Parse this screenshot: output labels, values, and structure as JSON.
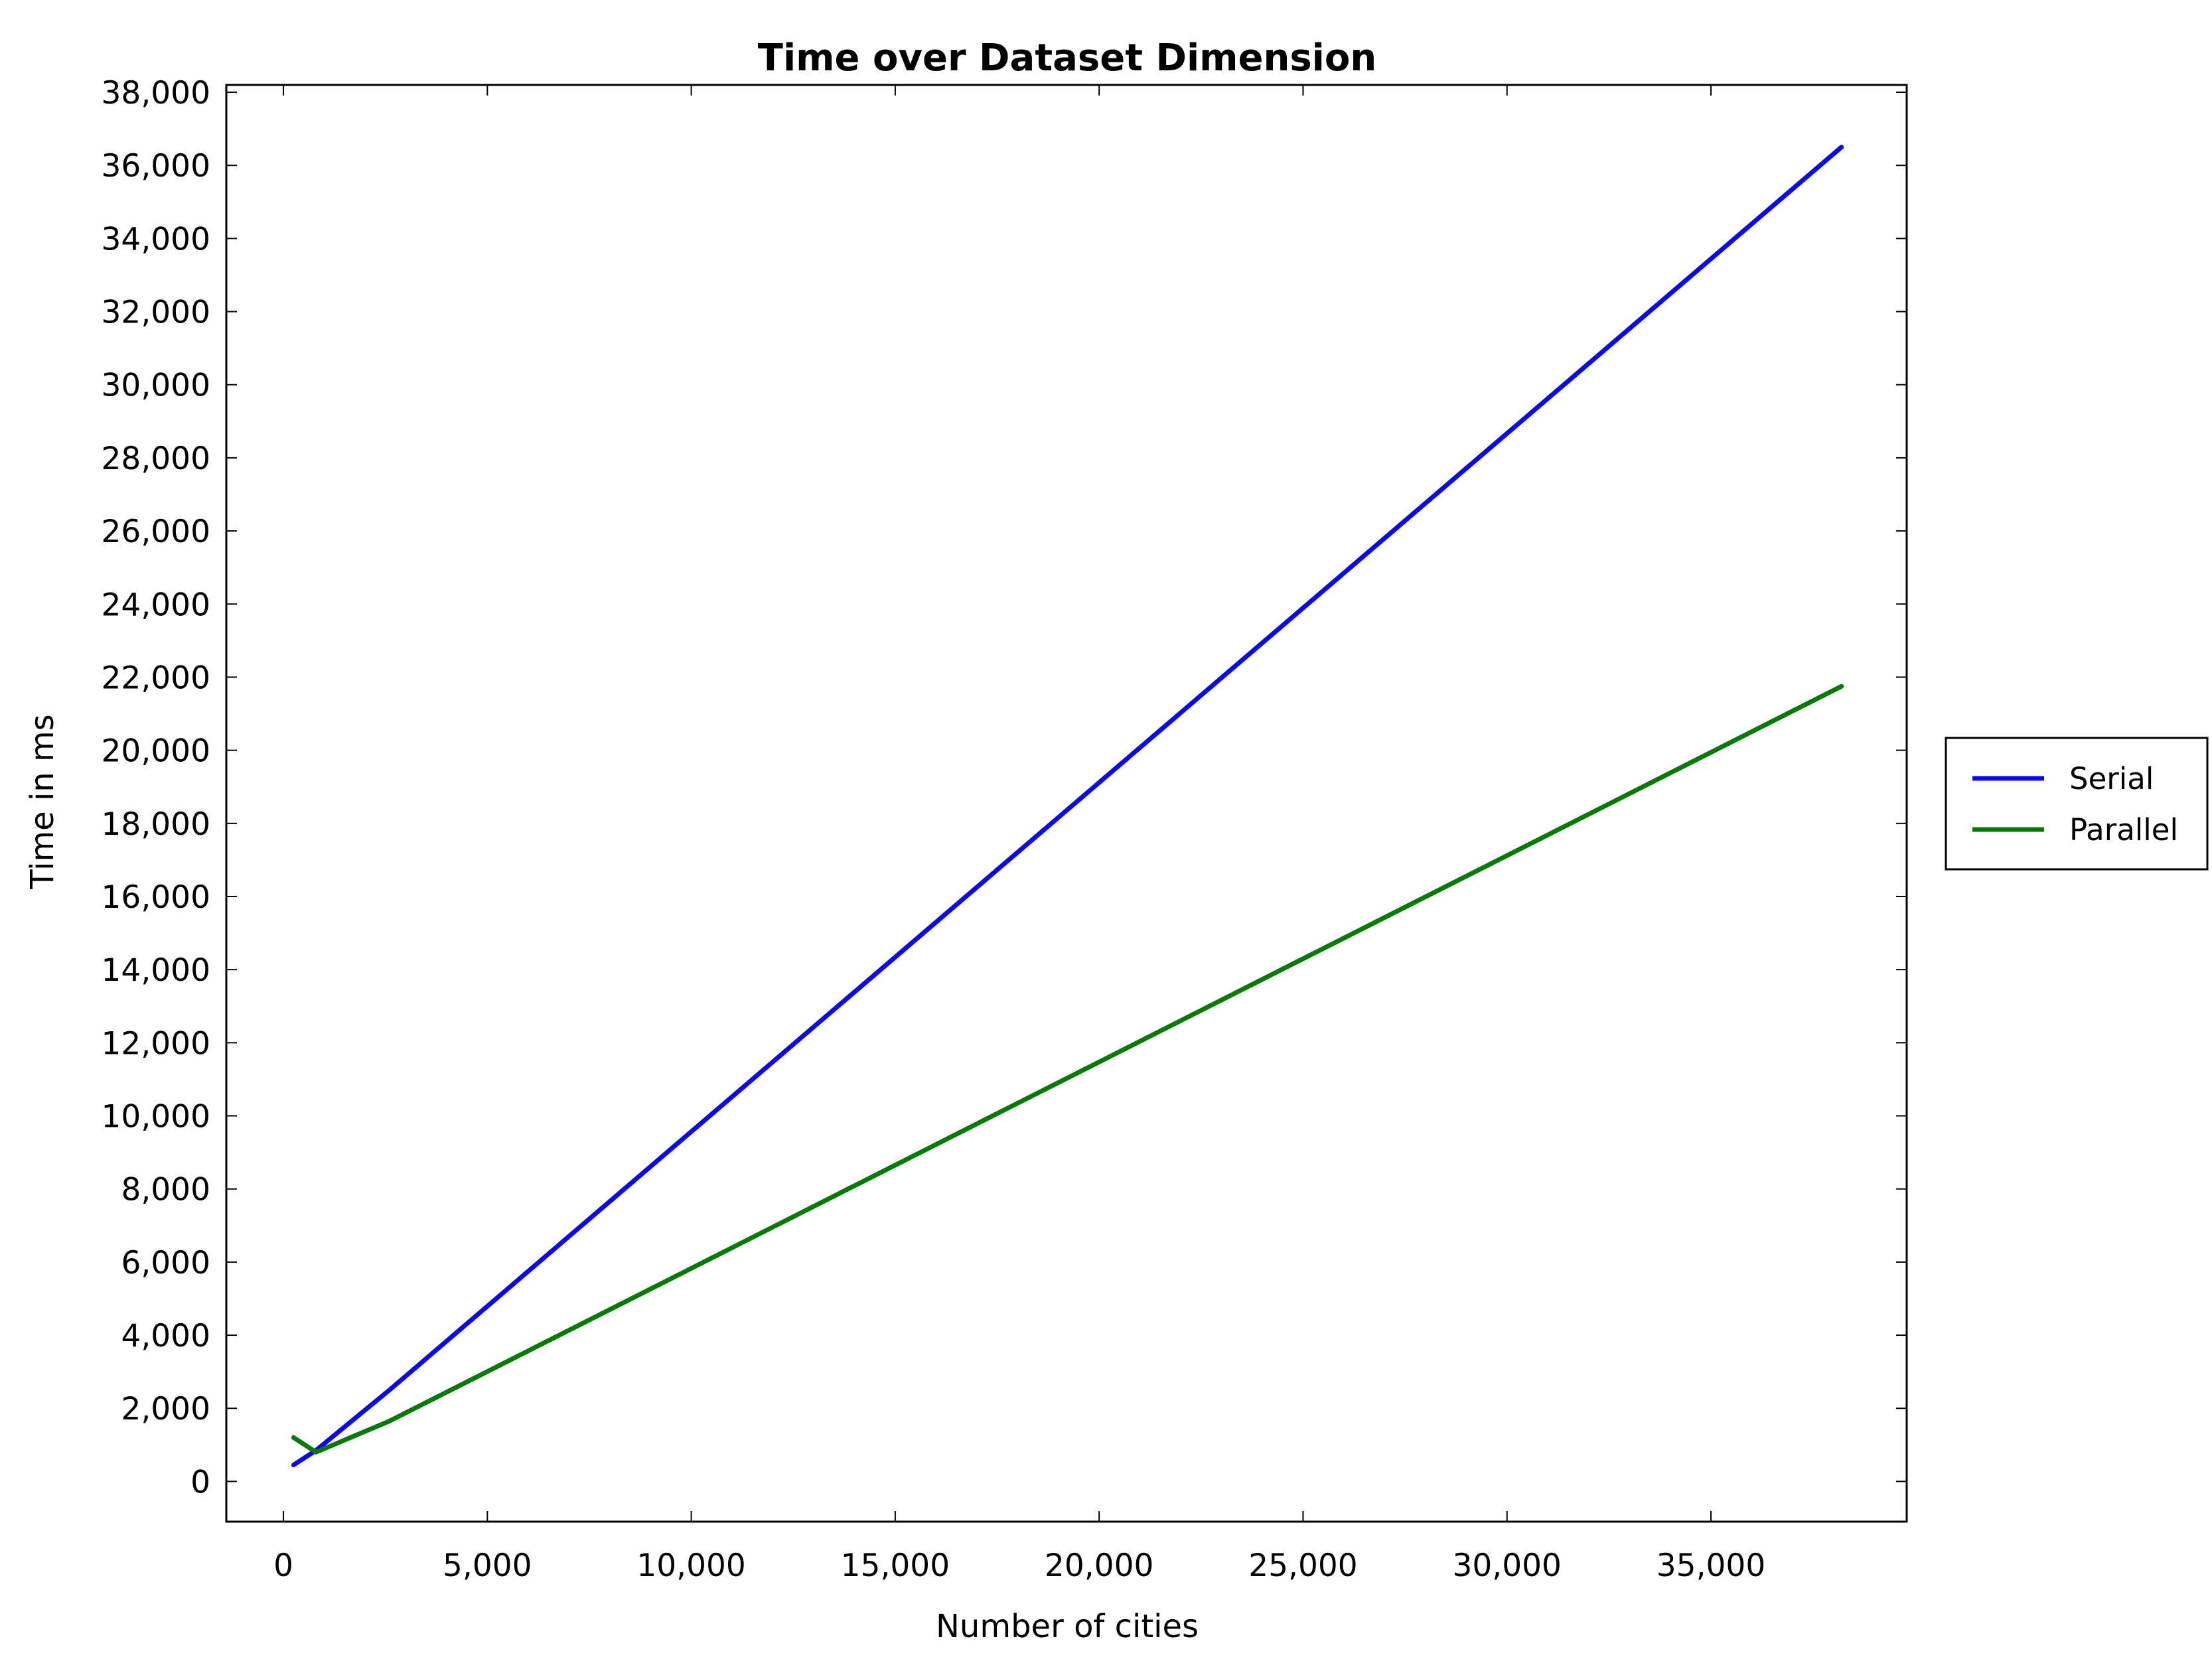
{
  "chart_data": {
    "type": "line",
    "title": "Time over Dataset Dimension",
    "xlabel": "Number of cities",
    "ylabel": "Time in ms",
    "xlim": [
      -1400,
      39800
    ],
    "ylim": [
      -1100,
      38200
    ],
    "x_ticks": [
      0,
      5000,
      10000,
      15000,
      20000,
      25000,
      30000,
      35000
    ],
    "x_tick_labels": [
      "0",
      "5,000",
      "10,000",
      "15,000",
      "20,000",
      "25,000",
      "30,000",
      "35,000"
    ],
    "y_ticks": [
      0,
      2000,
      4000,
      6000,
      8000,
      10000,
      12000,
      14000,
      16000,
      18000,
      20000,
      22000,
      24000,
      26000,
      28000,
      30000,
      32000,
      34000,
      36000,
      38000
    ],
    "y_tick_labels": [
      "0",
      "2,000",
      "4,000",
      "6,000",
      "8,000",
      "10,000",
      "12,000",
      "14,000",
      "16,000",
      "18,000",
      "20,000",
      "22,000",
      "24,000",
      "26,000",
      "28,000",
      "30,000",
      "32,000",
      "34,000",
      "36,000",
      "38,000"
    ],
    "grid": false,
    "legend_position": "right",
    "series": [
      {
        "name": "Serial",
        "color": "#0a0ae6",
        "x": [
          250,
          800,
          2600,
          38200
        ],
        "y": [
          450,
          850,
          2500,
          36500
        ]
      },
      {
        "name": "Parallel",
        "color": "#087808",
        "x": [
          250,
          800,
          2600,
          38200
        ],
        "y": [
          1200,
          800,
          1650,
          21750
        ]
      }
    ]
  }
}
